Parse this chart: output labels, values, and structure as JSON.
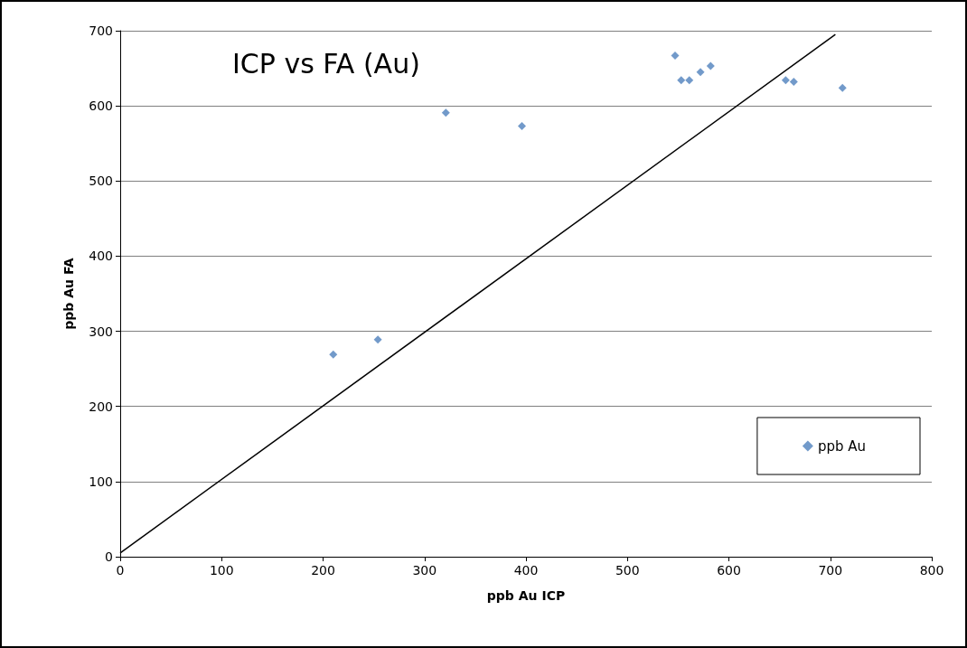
{
  "chart_data": {
    "type": "scatter",
    "title": "ICP vs FA (Au)",
    "xlabel": "ppb Au ICP",
    "ylabel": "ppb Au FA",
    "xlim": [
      0,
      800
    ],
    "xticks": [
      0,
      100,
      200,
      300,
      400,
      500,
      600,
      700,
      800
    ],
    "ylim": [
      0,
      700
    ],
    "yticks": [
      0,
      100,
      200,
      300,
      400,
      500,
      600,
      700
    ],
    "series": [
      {
        "name": "ppb Au",
        "marker": "diamond",
        "color": "#4f81bd",
        "x": [
          210,
          254,
          321,
          396,
          547,
          553,
          561,
          572,
          582,
          656,
          664,
          712
        ],
        "values": [
          269,
          289,
          591,
          573,
          667,
          634,
          634,
          645,
          653,
          634,
          632,
          624
        ]
      },
      {
        "type": "line",
        "marker": "none",
        "color": "#000000",
        "x": [
          0,
          705
        ],
        "values": [
          5,
          695
        ]
      }
    ],
    "grid": "y",
    "legend": "bottom right"
  }
}
